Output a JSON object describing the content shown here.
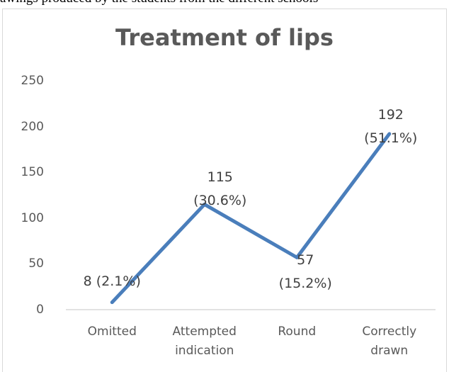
{
  "caption": "awings produced by the students from the different schools",
  "chart_data": {
    "type": "line",
    "title": "Treatment of lips",
    "categories": [
      "Omitted",
      "Attempted indication",
      "Round",
      "Correctly drawn"
    ],
    "values": [
      8,
      115,
      57,
      192
    ],
    "value_labels": [
      "8 (2.1%)",
      "115 (30.6%)",
      "57 (15.2%)",
      "192 (51.1%)"
    ],
    "color": "#4a7ebb",
    "ylim": [
      0,
      250
    ],
    "yticks": [
      0,
      50,
      100,
      150,
      200,
      250
    ],
    "grid": false
  }
}
